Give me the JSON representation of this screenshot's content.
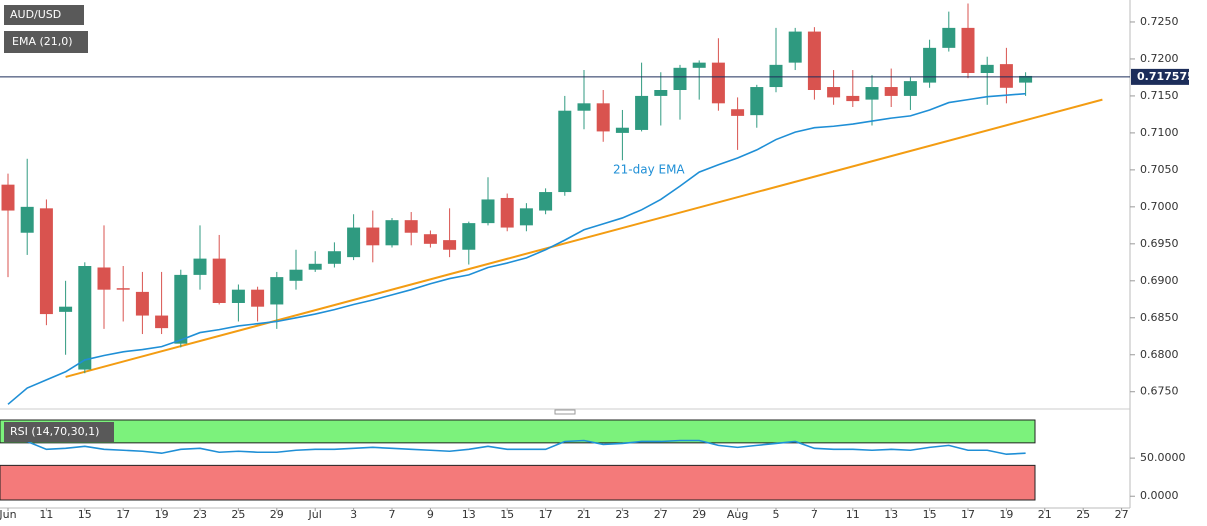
{
  "chart_data": {
    "type": "candlestick",
    "title": "AUD/USD",
    "up_color": "#2f9a80",
    "down_color": "#d9534f",
    "categories": [
      "Jun",
      null,
      "11",
      null,
      "15",
      null,
      "17",
      null,
      "19",
      null,
      "23",
      null,
      "25",
      null,
      "29",
      null,
      "Jul",
      null,
      "3",
      null,
      "7",
      null,
      "9",
      null,
      "13",
      null,
      "15",
      null,
      "17",
      null,
      "21",
      null,
      "23",
      null,
      "27",
      null,
      "29",
      null,
      "Aug",
      null,
      "5",
      null,
      "7",
      null,
      "11",
      null,
      "13",
      null,
      "15",
      null,
      "17",
      null,
      "19",
      null,
      "21",
      null,
      "25",
      null,
      "27"
    ],
    "open": [
      0.703,
      0.6965,
      0.6998,
      0.6858,
      0.678,
      0.6918,
      0.689,
      0.6885,
      0.6853,
      0.6815,
      0.6908,
      0.693,
      0.687,
      0.6888,
      0.6868,
      0.69,
      0.6915,
      0.6923,
      0.6932,
      0.6972,
      0.6948,
      0.6982,
      0.6963,
      0.6955,
      0.6942,
      0.6978,
      0.7012,
      0.6975,
      0.6995,
      0.702,
      0.713,
      0.714,
      0.71,
      0.7104,
      0.715,
      0.7158,
      0.7188,
      0.7195,
      0.7132,
      0.7124,
      0.7162,
      0.7195,
      0.7237,
      0.7162,
      0.715,
      0.7145,
      0.7162,
      0.715,
      0.7168,
      0.7215,
      0.7242,
      0.7181,
      0.7193,
      0.7168,
      null,
      null,
      null,
      null,
      null
    ],
    "high": [
      0.7045,
      0.7065,
      0.701,
      0.69,
      0.6925,
      0.6975,
      0.692,
      0.6912,
      0.6912,
      0.6915,
      0.6975,
      0.6962,
      0.6895,
      0.6892,
      0.6912,
      0.6942,
      0.694,
      0.6952,
      0.699,
      0.6995,
      0.6985,
      0.6993,
      0.6968,
      0.6998,
      0.698,
      0.704,
      0.7018,
      0.7005,
      0.7025,
      0.715,
      0.7185,
      0.7158,
      0.7131,
      0.7195,
      0.7182,
      0.7192,
      0.7198,
      0.7228,
      0.7148,
      0.7165,
      0.7242,
      0.7242,
      0.7243,
      0.7185,
      0.7185,
      0.7178,
      0.7187,
      0.7175,
      0.7226,
      0.7264,
      0.7275,
      0.7203,
      0.7215,
      0.7182,
      null,
      null,
      null,
      null,
      null
    ],
    "low": [
      0.6905,
      0.6935,
      0.684,
      0.68,
      0.6775,
      0.6835,
      0.6845,
      0.6828,
      0.6828,
      0.681,
      0.6888,
      0.6868,
      0.6845,
      0.6845,
      0.6835,
      0.6888,
      0.6912,
      0.6918,
      0.6928,
      0.6925,
      0.6945,
      0.6948,
      0.6945,
      0.6932,
      0.6922,
      0.6975,
      0.6967,
      0.6967,
      0.699,
      0.7015,
      0.7105,
      0.7088,
      0.7063,
      0.7102,
      0.711,
      0.7118,
      0.7145,
      0.713,
      0.7077,
      0.7107,
      0.7155,
      0.7185,
      0.7145,
      0.7138,
      0.7135,
      0.711,
      0.7135,
      0.7131,
      0.7161,
      0.721,
      0.7174,
      0.7138,
      0.714,
      0.715,
      null,
      null,
      null,
      null,
      null
    ],
    "close": [
      0.6995,
      0.7,
      0.6855,
      0.6865,
      0.692,
      0.6888,
      0.6888,
      0.6853,
      0.6836,
      0.6908,
      0.693,
      0.687,
      0.6888,
      0.6865,
      0.6905,
      0.6915,
      0.6923,
      0.694,
      0.6972,
      0.6948,
      0.6982,
      0.6965,
      0.695,
      0.6942,
      0.6978,
      0.701,
      0.6972,
      0.6998,
      0.702,
      0.713,
      0.714,
      0.7102,
      0.7107,
      0.715,
      0.7158,
      0.7188,
      0.7195,
      0.714,
      0.7123,
      0.7162,
      0.7192,
      0.7237,
      0.7158,
      0.7148,
      0.7143,
      0.7162,
      0.715,
      0.717,
      0.7215,
      0.7242,
      0.7181,
      0.7192,
      0.7161,
      0.7177,
      null,
      null,
      null,
      null,
      null
    ],
    "ema": {
      "name": "EMA (21,0)",
      "color": "#1f8fd6",
      "annotation": "21-day EMA",
      "values": [
        0.6733,
        0.6755,
        0.6766,
        0.6777,
        0.6793,
        0.6799,
        0.6804,
        0.6807,
        0.6811,
        0.682,
        0.683,
        0.6834,
        0.6839,
        0.6842,
        0.6845,
        0.685,
        0.6855,
        0.6861,
        0.6868,
        0.6874,
        0.6881,
        0.6888,
        0.6896,
        0.6903,
        0.6908,
        0.6918,
        0.6924,
        0.6931,
        0.6942,
        0.6955,
        0.6969,
        0.6977,
        0.6985,
        0.6996,
        0.701,
        0.7028,
        0.7047,
        0.7057,
        0.7066,
        0.7077,
        0.7091,
        0.7101,
        0.7107,
        0.7109,
        0.7112,
        0.7116,
        0.712,
        0.7123,
        0.7131,
        0.7141,
        0.7145,
        0.7149,
        0.7151,
        0.7153,
        null,
        null,
        null,
        null,
        null
      ]
    },
    "trendline": {
      "color": "#f39c12",
      "x": [
        3,
        57
      ],
      "values": [
        0.677,
        0.7145
      ]
    },
    "last_price": 0.717575,
    "ylim": [
      0.6728,
      0.7277
    ],
    "yticks": [
      {
        "value": 0.725,
        "label": "0.7250"
      },
      {
        "value": 0.72,
        "label": "0.7200"
      },
      {
        "value": 0.715,
        "label": "0.7150"
      },
      {
        "value": 0.71,
        "label": "0.7100"
      },
      {
        "value": 0.705,
        "label": "0.7050"
      },
      {
        "value": 0.7,
        "label": "0.7000"
      },
      {
        "value": 0.695,
        "label": "0.6950"
      },
      {
        "value": 0.69,
        "label": "0.6900"
      },
      {
        "value": 0.685,
        "label": "0.6850"
      },
      {
        "value": 0.68,
        "label": "0.6800"
      },
      {
        "value": 0.675,
        "label": "0.6750"
      }
    ],
    "grid": false,
    "rsi": {
      "name": "RSI (14,70,30,1)",
      "color": "#1f8fd6",
      "overbought": 70,
      "oversold": 30,
      "overbought_color": "#7cf27c",
      "oversold_color": "#f47a7a",
      "ylim": [
        -12.8,
        102.6
      ],
      "yticks": [
        {
          "value": 50,
          "label": "50.0000"
        },
        {
          "value": 0,
          "label": "0.0000"
        }
      ],
      "values": [
        74.4,
        71.8,
        61.5,
        62.8,
        65.4,
        61.5,
        60.3,
        59.0,
        56.4,
        61.5,
        62.8,
        57.7,
        59.0,
        57.7,
        57.7,
        60.3,
        61.5,
        61.5,
        62.8,
        64.1,
        62.8,
        61.5,
        60.3,
        59.0,
        61.5,
        65.4,
        61.5,
        61.5,
        61.5,
        71.8,
        73.1,
        67.9,
        69.2,
        71.8,
        71.8,
        73.1,
        73.1,
        66.7,
        64.1,
        66.7,
        69.2,
        71.8,
        62.8,
        61.5,
        61.5,
        60.3,
        61.5,
        60.3,
        64.1,
        66.7,
        60.3,
        60.3,
        55.1,
        56.4,
        null,
        null,
        null,
        null,
        null
      ]
    }
  }
}
